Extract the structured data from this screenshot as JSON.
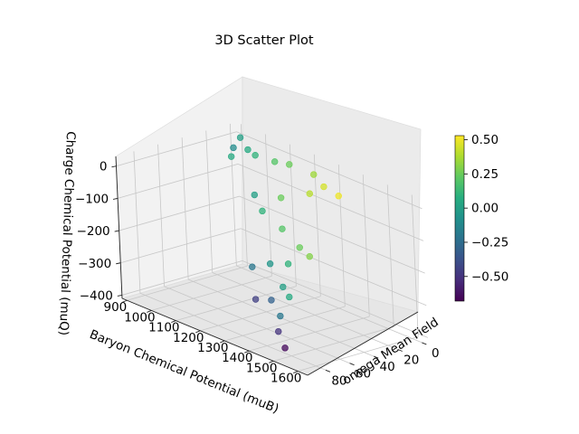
{
  "chart_data": {
    "type": "scatter",
    "projection": "3d",
    "title": "3D Scatter Plot",
    "xlabel": "Baryon Chemical Potential (muB)",
    "ylabel": "omega Mean Field",
    "zlabel": "Charge Chemical Potential (muQ)",
    "xlim": [
      880,
      1640
    ],
    "ylim": [
      -5,
      95
    ],
    "zlim": [
      -410,
      30
    ],
    "xticks": [
      "900",
      "1000",
      "1100",
      "1200",
      "1300",
      "1400",
      "1500",
      "1600"
    ],
    "yticks": [
      "0",
      "20",
      "40",
      "60",
      "80"
    ],
    "zticks": [
      "0",
      "−100",
      "−200",
      "−300",
      "−400"
    ],
    "grid": true,
    "colormap": "viridis",
    "colorbar": {
      "min": -0.68,
      "max": 0.53,
      "ticks": [
        "0.50",
        "0.25",
        "0.00",
        "−0.25",
        "−0.50"
      ]
    },
    "points": [
      {
        "x": 930,
        "y": 2,
        "z": 5,
        "c": 0.0
      },
      {
        "x": 930,
        "y": 8,
        "z": -20,
        "c": -0.1
      },
      {
        "x": 940,
        "y": 12,
        "z": -40,
        "c": 0.05
      },
      {
        "x": 1000,
        "y": 10,
        "z": -2,
        "c": 0.05
      },
      {
        "x": 1030,
        "y": 10,
        "z": -10,
        "c": 0.1
      },
      {
        "x": 1100,
        "y": 8,
        "z": -10,
        "c": 0.2
      },
      {
        "x": 1150,
        "y": 6,
        "z": -5,
        "c": 0.25
      },
      {
        "x": 1250,
        "y": 6,
        "z": -5,
        "c": 0.35
      },
      {
        "x": 1300,
        "y": 8,
        "z": -25,
        "c": 0.45
      },
      {
        "x": 1350,
        "y": 6,
        "z": -40,
        "c": 0.5
      },
      {
        "x": 1250,
        "y": 10,
        "z": -60,
        "c": 0.4
      },
      {
        "x": 1150,
        "y": 14,
        "z": -100,
        "c": 0.25
      },
      {
        "x": 1050,
        "y": 16,
        "z": -120,
        "c": 0.0
      },
      {
        "x": 1100,
        "y": 20,
        "z": -150,
        "c": 0.1
      },
      {
        "x": 1200,
        "y": 24,
        "z": -170,
        "c": 0.2
      },
      {
        "x": 1300,
        "y": 30,
        "z": -190,
        "c": 0.25
      },
      {
        "x": 1350,
        "y": 32,
        "z": -200,
        "c": 0.3
      },
      {
        "x": 1300,
        "y": 40,
        "z": -230,
        "c": 0.1
      },
      {
        "x": 1250,
        "y": 45,
        "z": -240,
        "c": -0.05
      },
      {
        "x": 1200,
        "y": 50,
        "z": -260,
        "c": -0.2
      },
      {
        "x": 1350,
        "y": 55,
        "z": -270,
        "c": 0.0
      },
      {
        "x": 1400,
        "y": 60,
        "z": -280,
        "c": 0.05
      },
      {
        "x": 1350,
        "y": 65,
        "z": -300,
        "c": -0.3
      },
      {
        "x": 1300,
        "y": 68,
        "z": -310,
        "c": -0.45
      },
      {
        "x": 1420,
        "y": 72,
        "z": -320,
        "c": -0.2
      },
      {
        "x": 1450,
        "y": 80,
        "z": -350,
        "c": -0.5
      },
      {
        "x": 1500,
        "y": 85,
        "z": -380,
        "c": -0.65
      }
    ]
  }
}
